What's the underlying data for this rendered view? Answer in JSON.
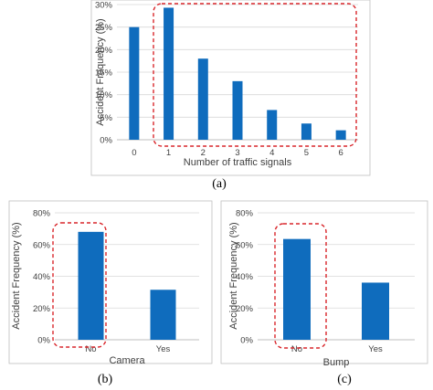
{
  "colors": {
    "bar": "#0f6cbd",
    "highlight": "#d9262b",
    "grid": "#d9d9d9",
    "axis": "#bfbfbf"
  },
  "chart_data": [
    {
      "type": "bar",
      "categories": [
        "0",
        "1",
        "2",
        "3",
        "4",
        "5",
        "6"
      ],
      "values": [
        25,
        29.3,
        18,
        13,
        6.6,
        3.6,
        2.1
      ],
      "xlabel": "Number of traffic signals",
      "ylabel": "Accident Frequency (%)",
      "ylim": [
        0,
        30
      ],
      "yticks": [
        "0%",
        "5%",
        "10%",
        "15%",
        "20%",
        "25%",
        "30%"
      ],
      "grid": true,
      "caption": "(a)",
      "highlight": "categories 1–6"
    },
    {
      "type": "bar",
      "categories": [
        "No",
        "Yes"
      ],
      "values": [
        68,
        31.5
      ],
      "xlabel": "Camera",
      "ylabel": "Accident Frequency (%)",
      "ylim": [
        0,
        80
      ],
      "yticks": [
        "0%",
        "20%",
        "40%",
        "60%",
        "80%"
      ],
      "grid": true,
      "caption": "(b)",
      "highlight": "No"
    },
    {
      "type": "bar",
      "categories": [
        "No",
        "Yes"
      ],
      "values": [
        63.5,
        36
      ],
      "xlabel": "Bump",
      "ylabel": "Accident Frequency (%)",
      "ylim": [
        0,
        80
      ],
      "yticks": [
        "0%",
        "20%",
        "40%",
        "60%",
        "80%"
      ],
      "grid": true,
      "caption": "(c)",
      "highlight": "No"
    }
  ]
}
